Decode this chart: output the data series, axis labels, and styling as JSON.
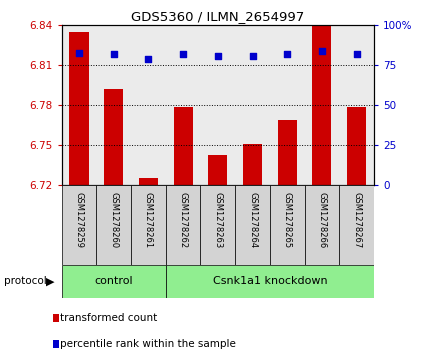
{
  "title": "GDS5360 / ILMN_2654997",
  "samples": [
    "GSM1278259",
    "GSM1278260",
    "GSM1278261",
    "GSM1278262",
    "GSM1278263",
    "GSM1278264",
    "GSM1278265",
    "GSM1278266",
    "GSM1278267"
  ],
  "bar_values": [
    6.835,
    6.792,
    6.725,
    6.779,
    6.743,
    6.751,
    6.769,
    6.84,
    6.779
  ],
  "dot_values": [
    83,
    82,
    79,
    82,
    81,
    81,
    82,
    84,
    82
  ],
  "ylim_left": [
    6.72,
    6.84
  ],
  "ylim_right": [
    0,
    100
  ],
  "yticks_left": [
    6.72,
    6.75,
    6.78,
    6.81,
    6.84
  ],
  "yticks_right": [
    0,
    25,
    50,
    75,
    100
  ],
  "bar_color": "#cc0000",
  "dot_color": "#0000cc",
  "bar_bottom": 6.72,
  "protocol_groups": [
    {
      "label": "control",
      "start": 0,
      "end": 3,
      "color": "#90ee90"
    },
    {
      "label": "Csnk1a1 knockdown",
      "start": 3,
      "end": 9,
      "color": "#90ee90"
    }
  ],
  "protocol_label": "protocol",
  "legend_items": [
    {
      "label": "transformed count",
      "color": "#cc0000"
    },
    {
      "label": "percentile rank within the sample",
      "color": "#0000cc"
    }
  ],
  "tick_label_color_left": "#cc0000",
  "tick_label_color_right": "#0000cc",
  "background_color": "#ffffff",
  "plot_bg_color": "#ebebeb",
  "cell_bg_color": "#d3d3d3"
}
